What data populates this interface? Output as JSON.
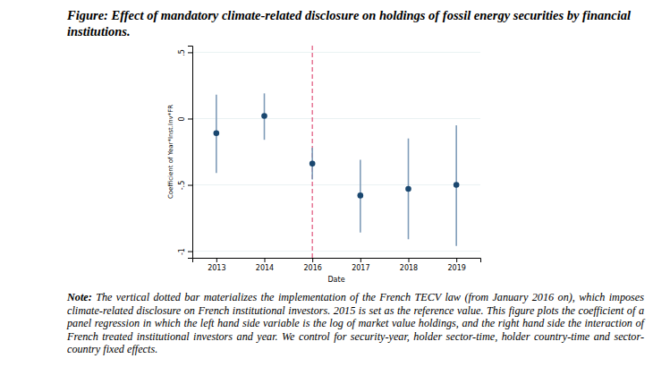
{
  "chart_data": {
    "type": "scatter",
    "title_label": "Figure:",
    "title": "Effect of mandatory climate-related disclosure on holdings of fossil energy securities by financial institutions.",
    "note_label": "Note:",
    "note": "The vertical dotted bar materializes the implementation of the French TECV law (from January 2016 on), which imposes climate-related disclosure on French institutional investors. 2015 is set as the reference value. This figure plots the coefficient of a panel regression in which the left hand side variable is the log of market value holdings, and the right hand side the interaction of French treated institutional investors and year. We control for security-year, holder sector-time, holder country-time and sector-country fixed effects.",
    "x_label": "Date",
    "y_label": "Coefficient of Year*Inst.Inv*FR",
    "categories": [
      "2013",
      "2014",
      "2016",
      "2017",
      "2018",
      "2019"
    ],
    "values": [
      -0.11,
      0.02,
      -0.34,
      -0.58,
      -0.53,
      -0.5
    ],
    "ci_low": [
      -0.41,
      -0.16,
      -0.46,
      -0.86,
      -0.91,
      -0.96
    ],
    "ci_high": [
      0.18,
      0.19,
      -0.22,
      -0.31,
      -0.15,
      -0.05
    ],
    "vline": "2016",
    "color": "#1a476f",
    "ylim": [
      -1.05,
      0.55
    ],
    "yticks": [
      -1,
      {
        "value": -0.5,
        "label": "-.5"
      },
      0,
      {
        "value": 0.5,
        "label": ".5"
      }
    ],
    "grid": true
  }
}
